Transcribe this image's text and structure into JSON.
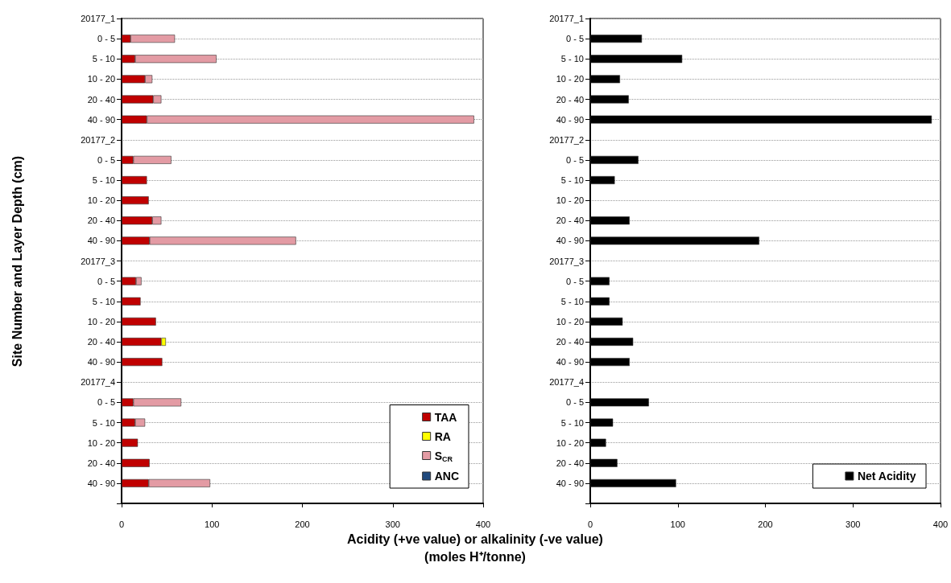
{
  "chart_data": [
    {
      "type": "bar",
      "orientation": "horizontal",
      "stacked": true,
      "xlabel": "Acidity (+ve value) or alkalinity (-ve value)\n(moles H⁺/tonne)",
      "ylabel": "Site Number and Layer Depth (cm)",
      "categories": [
        "20177_1",
        "0 - 5",
        "5 - 10",
        "10 - 20",
        "20 - 40",
        "40 - 90",
        "20177_2",
        "0 - 5",
        "5 - 10",
        "10 - 20",
        "20 - 40",
        "40 - 90",
        "20177_3",
        "0 - 5",
        "5 - 10",
        "10 - 20",
        "20 - 40",
        "40 - 90",
        "20177_4",
        "0 - 5",
        "5 - 10",
        "10 - 20",
        "20 - 40",
        "40 - 90",
        null
      ],
      "series": [
        {
          "name": "TAA",
          "color": "#c00000",
          "values": [
            null,
            10,
            15,
            26,
            35,
            28,
            null,
            13,
            28,
            30,
            34,
            31,
            null,
            16,
            21,
            38,
            44,
            45,
            null,
            13,
            15,
            18,
            31,
            30,
            null
          ]
        },
        {
          "name": "RA",
          "color": "#ffff00",
          "values": [
            null,
            null,
            null,
            null,
            null,
            null,
            null,
            null,
            null,
            null,
            null,
            null,
            null,
            null,
            null,
            null,
            5,
            null,
            null,
            null,
            null,
            null,
            null,
            null,
            null
          ]
        },
        {
          "name": "S$_{CR}$",
          "color": "#e39ba4",
          "values": [
            null,
            49,
            90,
            8,
            9,
            362,
            null,
            42,
            null,
            null,
            10,
            162,
            null,
            6,
            null,
            null,
            null,
            null,
            null,
            53,
            11,
            null,
            null,
            68,
            null
          ]
        },
        {
          "name": "ANC",
          "color": "#1f497d",
          "values": [
            null,
            null,
            null,
            null,
            null,
            null,
            null,
            null,
            null,
            null,
            null,
            null,
            null,
            null,
            null,
            null,
            null,
            null,
            null,
            null,
            null,
            null,
            null,
            null,
            null
          ]
        }
      ],
      "xlim": [
        0,
        400
      ],
      "xticks": [
        0,
        100,
        200,
        300,
        400
      ],
      "grid": "y",
      "legend": "bottom right"
    },
    {
      "type": "bar",
      "orientation": "horizontal",
      "categories": [
        "20177_1",
        "0 - 5",
        "5 - 10",
        "10 - 20",
        "20 - 40",
        "40 - 90",
        "20177_2",
        "0 - 5",
        "5 - 10",
        "10 - 20",
        "20 - 40",
        "40 - 90",
        "20177_3",
        "0 - 5",
        "5 - 10",
        "10 - 20",
        "20 - 40",
        "40 - 90",
        "20177_4",
        "0 - 5",
        "5 - 10",
        "10 - 20",
        "20 - 40",
        "40 - 90",
        null
      ],
      "series": [
        {
          "name": "Net Acidity",
          "color": "#000000",
          "values": [
            null,
            59,
            105,
            34,
            44,
            390,
            null,
            55,
            28,
            null,
            45,
            193,
            null,
            22,
            22,
            37,
            49,
            45,
            null,
            67,
            26,
            18,
            31,
            98,
            null
          ]
        }
      ],
      "xlim": [
        0,
        400
      ],
      "xticks": [
        0,
        100,
        200,
        300,
        400
      ],
      "grid": "y",
      "legend": "bottom right"
    }
  ]
}
